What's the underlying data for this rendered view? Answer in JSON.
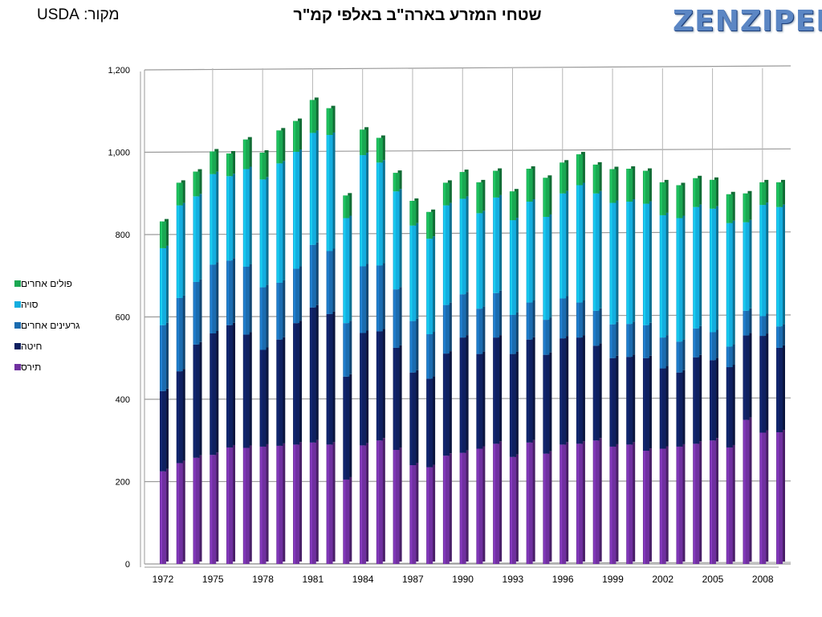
{
  "header": {
    "source": "מקור: USDA",
    "title": "שטחי המזרע בארה\"ב באלפי קמ\"ר",
    "logo": "ZENZIPER"
  },
  "colors": {
    "corn": "#7030a0",
    "wheat": "#0f2060",
    "other_grains": "#1b6cb0",
    "soy": "#14aee0",
    "other_legumes": "#1aa852"
  },
  "chart_data": {
    "type": "bar",
    "stacked": true,
    "title": "שטחי המזרע בארה\"ב באלפי קמ\"ר",
    "xlabel": "",
    "ylabel": "",
    "ylim": [
      0,
      1200
    ],
    "y_ticks": [
      "0",
      "200",
      "400",
      "600",
      "800",
      "1,000",
      "1,200"
    ],
    "y_tick_values": [
      0,
      200,
      400,
      600,
      800,
      1000,
      1200
    ],
    "legend_position": "left",
    "grid": true,
    "categories": [
      1972,
      1973,
      1974,
      1975,
      1976,
      1977,
      1978,
      1979,
      1980,
      1981,
      1982,
      1983,
      1984,
      1985,
      1986,
      1987,
      1988,
      1989,
      1990,
      1991,
      1992,
      1993,
      1994,
      1995,
      1996,
      1997,
      1998,
      1999,
      2000,
      2001,
      2002,
      2003,
      2004,
      2005,
      2006,
      2007,
      2008,
      2009
    ],
    "x_tick_labels": [
      "1972",
      "1975",
      "1978",
      "1981",
      "1984",
      "1987",
      "1990",
      "1993",
      "1996",
      "1999",
      "2002",
      "2005",
      "2008"
    ],
    "series": [
      {
        "name": "תירס",
        "key": "corn",
        "values": [
          225,
          245,
          258,
          265,
          283,
          282,
          285,
          287,
          290,
          295,
          290,
          205,
          288,
          300,
          277,
          240,
          235,
          263,
          270,
          280,
          292,
          260,
          295,
          268,
          290,
          292,
          300,
          285,
          290,
          275,
          280,
          285,
          292,
          300,
          283,
          350,
          319,
          320
        ]
      },
      {
        "name": "חיטה",
        "key": "wheat",
        "values": [
          195,
          223,
          275,
          295,
          297,
          275,
          235,
          258,
          295,
          328,
          317,
          250,
          273,
          265,
          248,
          225,
          215,
          248,
          280,
          230,
          258,
          250,
          250,
          240,
          258,
          258,
          230,
          215,
          213,
          225,
          195,
          180,
          210,
          195,
          195,
          205,
          235,
          205
        ]
      },
      {
        "name": "גרעינים אחרים",
        "key": "other_grains",
        "values": [
          160,
          178,
          152,
          167,
          157,
          165,
          152,
          138,
          132,
          152,
          153,
          130,
          162,
          160,
          142,
          125,
          108,
          118,
          105,
          110,
          108,
          95,
          90,
          85,
          97,
          85,
          85,
          82,
          80,
          80,
          75,
          75,
          70,
          68,
          50,
          60,
          48,
          52
        ]
      },
      {
        "name": "סויה",
        "key": "soy",
        "values": [
          187,
          225,
          208,
          220,
          205,
          237,
          262,
          290,
          284,
          272,
          282,
          255,
          270,
          250,
          238,
          232,
          232,
          242,
          232,
          232,
          232,
          230,
          245,
          250,
          255,
          285,
          285,
          295,
          297,
          295,
          297,
          300,
          295,
          300,
          300,
          215,
          270,
          290
        ]
      },
      {
        "name": "פולים אחרים",
        "key": "other_legumes",
        "values": [
          65,
          55,
          60,
          55,
          55,
          72,
          65,
          80,
          75,
          80,
          65,
          55,
          62,
          60,
          45,
          60,
          65,
          55,
          65,
          75,
          65,
          70,
          80,
          95,
          75,
          75,
          70,
          82,
          80,
          80,
          80,
          80,
          70,
          70,
          70,
          70,
          55,
          60
        ]
      }
    ]
  }
}
